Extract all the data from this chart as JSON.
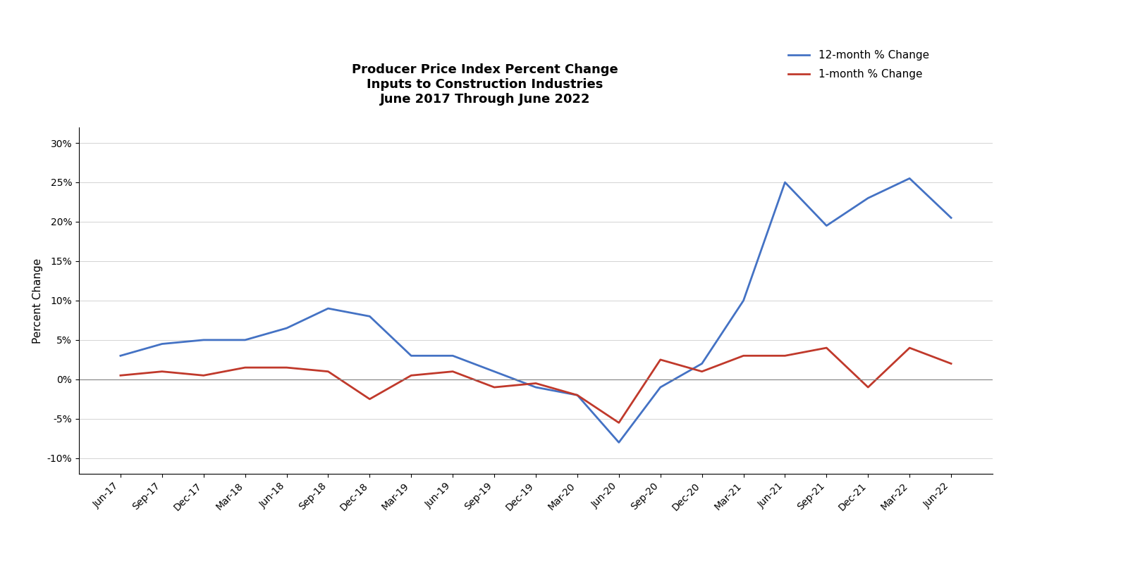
{
  "title_line1": "Producer Price Index Percent Change",
  "title_line2": "Inputs to Construction Industries",
  "title_line3": "June 2017 Through June 2022",
  "ylabel": "Percent Change",
  "background_color": "#ffffff",
  "title_fontsize": 13,
  "label_fontsize": 11,
  "tick_fontsize": 10,
  "ylim": [
    -0.12,
    0.32
  ],
  "yticks": [
    -0.1,
    -0.05,
    0.0,
    0.05,
    0.1,
    0.15,
    0.2,
    0.25,
    0.3
  ],
  "x_labels": [
    "Jun-17",
    "Sep-17",
    "Dec-17",
    "Mar-18",
    "Jun-18",
    "Sep-18",
    "Dec-18",
    "Mar-19",
    "Jun-19",
    "Sep-19",
    "Dec-19",
    "Mar-20",
    "Jun-20",
    "Sep-20",
    "Dec-20",
    "Mar-21",
    "Jun-21",
    "Sep-21",
    "Dec-21",
    "Mar-22",
    "Jun-22"
  ],
  "series_12month": [
    0.03,
    0.045,
    0.05,
    0.05,
    0.065,
    0.09,
    0.08,
    0.03,
    0.03,
    0.01,
    -0.01,
    -0.02,
    -0.08,
    -0.01,
    0.02,
    0.1,
    0.25,
    0.195,
    0.23,
    0.255,
    0.205
  ],
  "series_1month": [
    0.005,
    0.01,
    0.005,
    0.015,
    0.015,
    0.01,
    -0.025,
    0.005,
    0.01,
    -0.01,
    -0.005,
    -0.02,
    -0.055,
    0.025,
    0.01,
    0.03,
    0.03,
    0.04,
    -0.01,
    0.04,
    0.02
  ],
  "color_12month": "#4472c4",
  "color_1month": "#c0392b",
  "line_width": 2.0,
  "legend_labels": [
    "12-month % Change",
    "1-month % Change"
  ]
}
